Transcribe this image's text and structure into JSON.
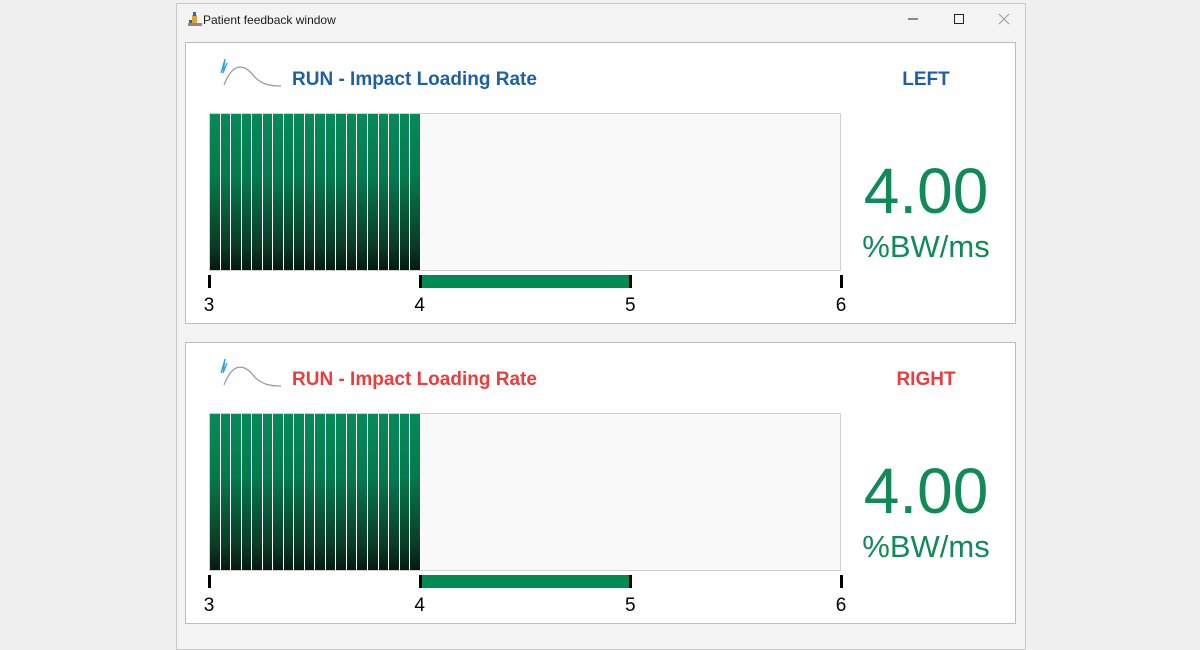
{
  "window": {
    "title": "Patient feedback window",
    "controls": {
      "minimize": "minimize-icon",
      "maximize": "maximize-icon",
      "close": "close-icon"
    }
  },
  "colors": {
    "left_accent": "#1f5fa6",
    "right_accent": "#ee3b3b",
    "value": "#118a58",
    "bar": "#068a58",
    "range": "#018a56"
  },
  "panels": [
    {
      "title": "RUN - Impact Loading Rate",
      "side": "LEFT",
      "value": "4.00",
      "unit": "%BW/ms",
      "icon": "loading-rate-curve-icon",
      "gauge": {
        "min": 3,
        "max": 6,
        "current": 4.0,
        "target_range": [
          4,
          5
        ],
        "ticks": [
          "3",
          "4",
          "5",
          "6"
        ],
        "segments": 20
      }
    },
    {
      "title": "RUN - Impact Loading Rate",
      "side": "RIGHT",
      "value": "4.00",
      "unit": "%BW/ms",
      "icon": "loading-rate-curve-icon",
      "gauge": {
        "min": 3,
        "max": 6,
        "current": 4.0,
        "target_range": [
          4,
          5
        ],
        "ticks": [
          "3",
          "4",
          "5",
          "6"
        ],
        "segments": 20
      }
    }
  ]
}
